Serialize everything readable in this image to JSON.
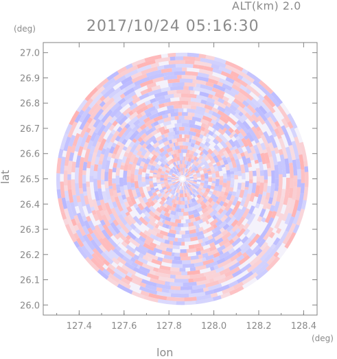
{
  "header": {
    "altitude_label": "ALT(km) 2.0",
    "timestamp": "2017/10/24 05:16:30"
  },
  "chart_data": {
    "type": "heatmap",
    "title": "2017/10/24 05:16:30",
    "subtitle": "ALT(km) 2.0",
    "xlabel": "lon",
    "ylabel": "lat",
    "x_unit": "(deg)",
    "y_unit": "(deg)",
    "xlim": [
      127.24,
      128.46
    ],
    "ylim": [
      25.96,
      27.04
    ],
    "x_ticks": [
      "127.4",
      "127.6",
      "127.8",
      "128.0",
      "128.2",
      "128.4"
    ],
    "y_ticks": [
      "26.0",
      "26.1",
      "26.2",
      "26.3",
      "26.4",
      "26.5",
      "26.6",
      "26.7",
      "26.8",
      "26.9",
      "27.0"
    ],
    "radar_center": {
      "lon": 127.86,
      "lat": 26.5
    },
    "coverage_radius_lat_deg": 0.5,
    "grid": false,
    "colors": {
      "positive": "#ffb3b3",
      "negative": "#b8b8ff",
      "axis": "#808080",
      "text": "#888888"
    }
  }
}
